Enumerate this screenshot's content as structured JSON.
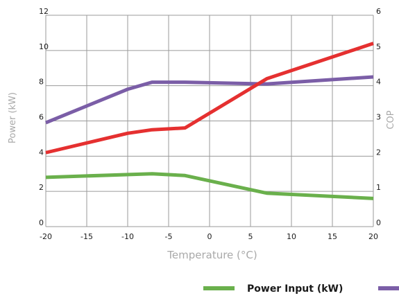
{
  "colors": {
    "power_input": "#6ab04c",
    "purple_series": "#7b5ea7",
    "red_series": "#e53030",
    "grid": "#9a9a9a"
  },
  "chart_data": {
    "type": "line",
    "xlabel": "Temperature (°C)",
    "ylabel": "Power (kW)",
    "y2label": "COP",
    "xlim": [
      -20,
      20
    ],
    "ylim": [
      0,
      12
    ],
    "y2lim": [
      0,
      6
    ],
    "x_ticks": [
      -20,
      -15,
      -10,
      -5,
      0,
      5,
      10,
      15,
      20
    ],
    "x_tick_labels": [
      "-20",
      "-15",
      "-10",
      "-5",
      "0",
      "5",
      "10",
      "15",
      "20"
    ],
    "y_ticks": [
      0,
      2,
      4,
      6,
      8,
      10,
      12
    ],
    "y_tick_labels": [
      "0",
      "2",
      "4",
      "6",
      "8",
      "10",
      "12"
    ],
    "y2_ticks": [
      0,
      1,
      2,
      3,
      4,
      5,
      6
    ],
    "y2_tick_labels": [
      "0",
      "1",
      "2",
      "3",
      "4",
      "5",
      "6"
    ],
    "grid": true,
    "legend_position": "bottom",
    "series": [
      {
        "name": "Power Input (kW)",
        "color_key": "power_input",
        "axis": "left",
        "x": [
          -20,
          -7,
          -3,
          7,
          20
        ],
        "y": [
          2.8,
          3.0,
          2.9,
          1.9,
          1.6
        ]
      },
      {
        "name": "",
        "color_key": "purple_series",
        "axis": "left",
        "x": [
          -20,
          -10,
          -7,
          -3,
          7,
          20
        ],
        "y": [
          5.9,
          7.8,
          8.2,
          8.2,
          8.1,
          8.5
        ]
      },
      {
        "name": "",
        "color_key": "red_series",
        "axis": "left",
        "x": [
          -20,
          -10,
          -7,
          -3,
          7,
          20
        ],
        "y": [
          4.2,
          5.3,
          5.5,
          5.6,
          8.4,
          10.4
        ]
      }
    ]
  }
}
